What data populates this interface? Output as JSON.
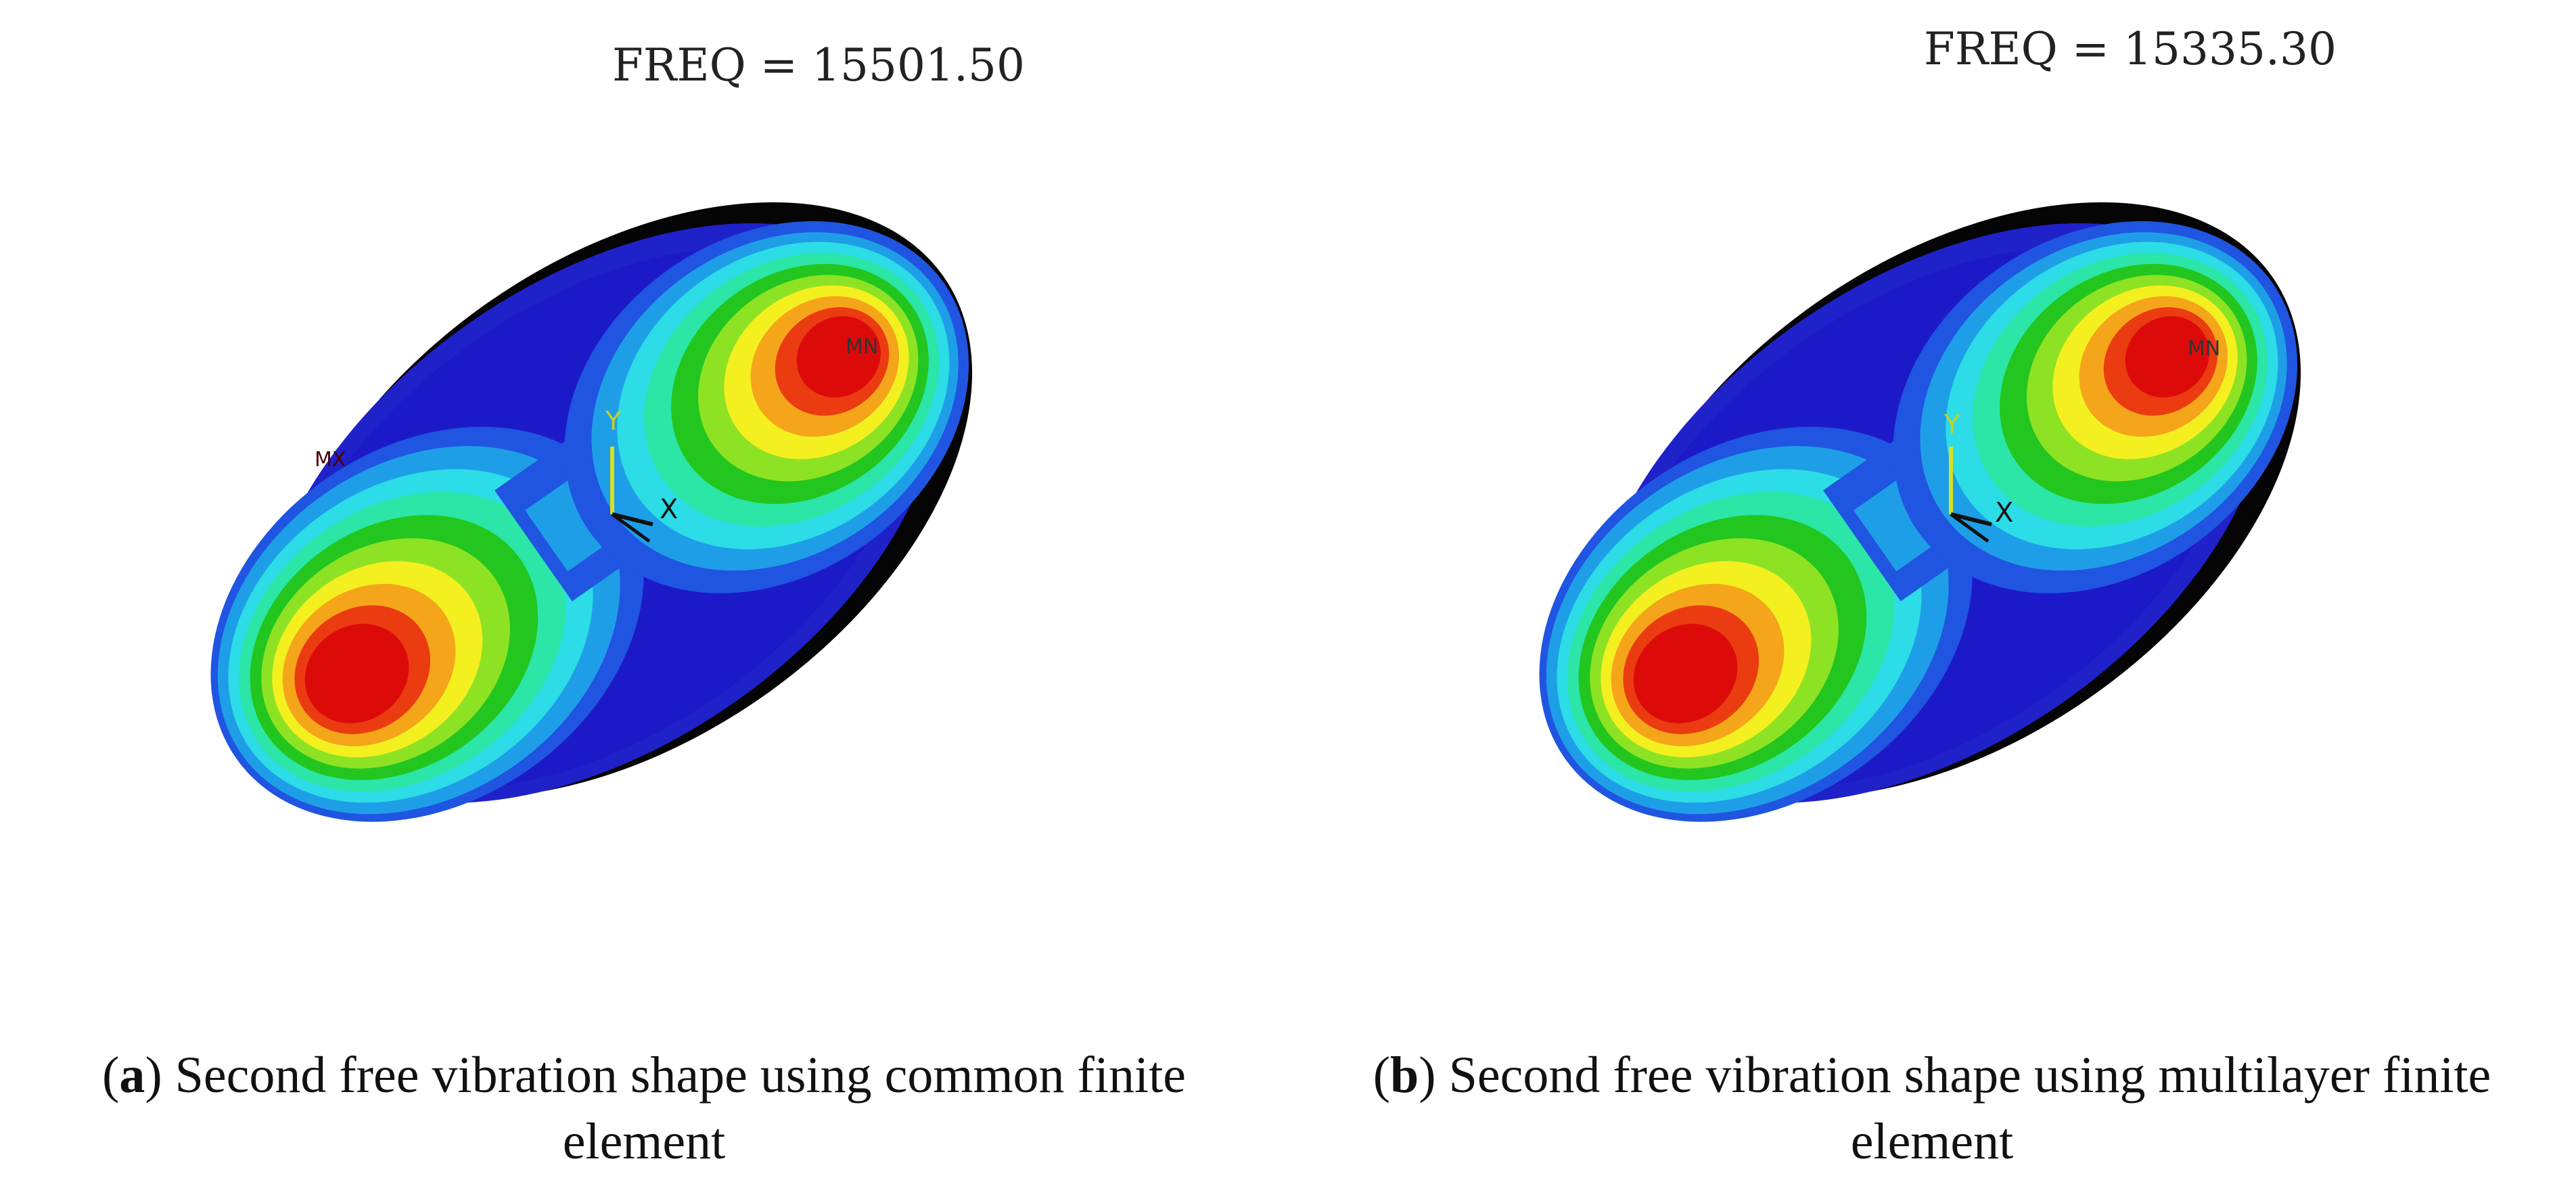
{
  "figure": {
    "panels": [
      {
        "freq": "FREQ = 15501.50",
        "max_marker": "MX",
        "min_marker": "MN",
        "axis_y": "Y",
        "axis_x": "X",
        "caption_letter": "a",
        "caption_line1": "Second free vibration shape using common finite",
        "caption_line2": "element"
      },
      {
        "freq": "FREQ = 15335.30",
        "min_marker": "MN",
        "axis_y": "Y",
        "axis_x": "X",
        "caption_letter": "b",
        "caption_line1": "Second free vibration shape using multilayer finite",
        "caption_line2": "element"
      }
    ],
    "contour_colors": [
      "#1c1ac8",
      "#1f55e0",
      "#1f9ee8",
      "#2cdce6",
      "#2ce6a8",
      "#22c61e",
      "#8ee224",
      "#f4f020",
      "#f5a51a",
      "#ea3c10",
      "#dd0a0a"
    ],
    "edge_color": "#000000"
  }
}
